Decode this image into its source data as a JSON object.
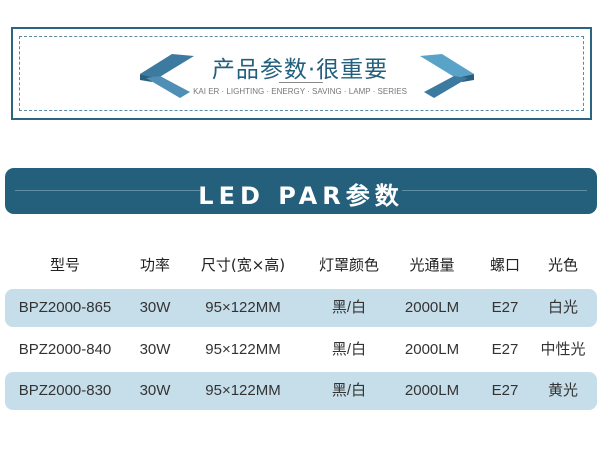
{
  "header": {
    "title": "产品参数·很重要",
    "subtitle": "KAI ER · LIGHTING · ENERGY · SAVING · LAMP · SERIES"
  },
  "banner": {
    "title": "LED PAR参数"
  },
  "colors": {
    "primary": "#245f7b",
    "row_shade": "#c6dee9"
  },
  "table": {
    "columns": [
      "型号",
      "功率",
      "尺寸(宽×高)",
      "灯罩颜色",
      "光通量",
      "螺口",
      "光色"
    ],
    "rows": [
      [
        "BPZ2000-865",
        "30W",
        "95×122MM",
        "黑/白",
        "2000LM",
        "E27",
        "白光"
      ],
      [
        "BPZ2000-840",
        "30W",
        "95×122MM",
        "黑/白",
        "2000LM",
        "E27",
        "中性光"
      ],
      [
        "BPZ2000-830",
        "30W",
        "95×122MM",
        "黑/白",
        "2000LM",
        "E27",
        "黄光"
      ]
    ]
  }
}
